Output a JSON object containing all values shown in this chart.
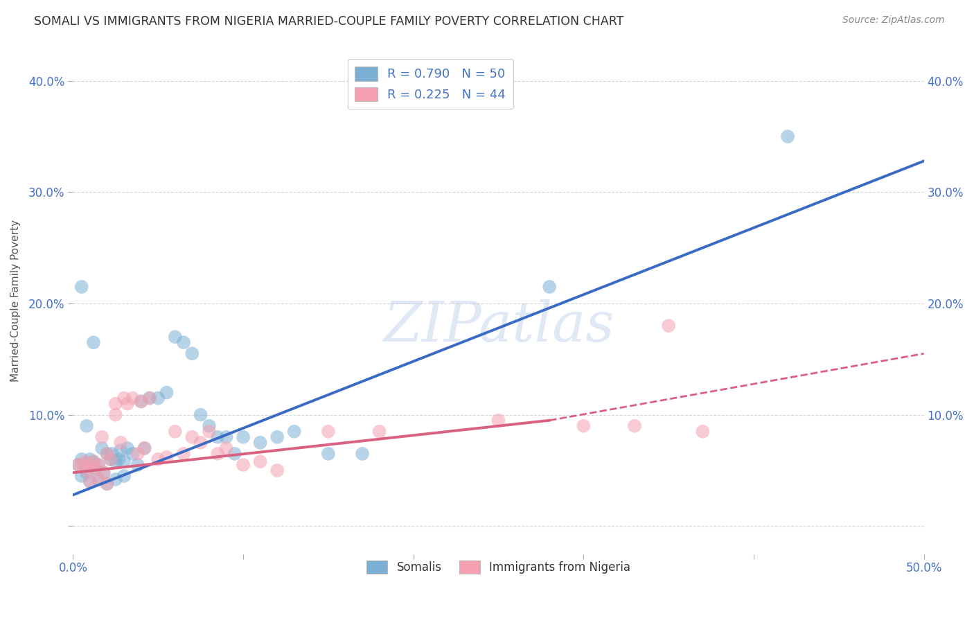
{
  "title": "SOMALI VS IMMIGRANTS FROM NIGERIA MARRIED-COUPLE FAMILY POVERTY CORRELATION CHART",
  "source": "Source: ZipAtlas.com",
  "ylabel": "Married-Couple Family Poverty",
  "xlim": [
    0.0,
    0.5
  ],
  "ylim": [
    -0.025,
    0.43
  ],
  "xticks": [
    0.0,
    0.1,
    0.2,
    0.3,
    0.4,
    0.5
  ],
  "yticks": [
    0.0,
    0.1,
    0.2,
    0.3,
    0.4
  ],
  "ytick_labels_left": [
    "",
    "10.0%",
    "20.0%",
    "30.0%",
    "40.0%"
  ],
  "ytick_labels_right": [
    "",
    "10.0%",
    "20.0%",
    "30.0%",
    "40.0%"
  ],
  "xtick_labels": [
    "0.0%",
    "",
    "",
    "",
    "",
    "50.0%"
  ],
  "somali_color": "#7bafd4",
  "nigeria_color": "#f4a0b0",
  "legend_label1": "Somalis",
  "legend_label2": "Immigrants from Nigeria",
  "somali_scatter_x": [
    0.003,
    0.005,
    0.005,
    0.007,
    0.008,
    0.01,
    0.01,
    0.012,
    0.013,
    0.015,
    0.015,
    0.017,
    0.018,
    0.02,
    0.02,
    0.022,
    0.023,
    0.025,
    0.025,
    0.027,
    0.028,
    0.03,
    0.03,
    0.032,
    0.035,
    0.038,
    0.04,
    0.042,
    0.045,
    0.05,
    0.055,
    0.06,
    0.065,
    0.07,
    0.075,
    0.08,
    0.085,
    0.09,
    0.095,
    0.1,
    0.11,
    0.12,
    0.13,
    0.15,
    0.17,
    0.005,
    0.008,
    0.012,
    0.28,
    0.42
  ],
  "somali_scatter_y": [
    0.055,
    0.06,
    0.045,
    0.055,
    0.048,
    0.06,
    0.04,
    0.058,
    0.052,
    0.055,
    0.042,
    0.07,
    0.048,
    0.065,
    0.038,
    0.06,
    0.065,
    0.058,
    0.042,
    0.06,
    0.068,
    0.058,
    0.045,
    0.07,
    0.065,
    0.055,
    0.112,
    0.07,
    0.115,
    0.115,
    0.12,
    0.17,
    0.165,
    0.155,
    0.1,
    0.09,
    0.08,
    0.08,
    0.065,
    0.08,
    0.075,
    0.08,
    0.085,
    0.065,
    0.065,
    0.215,
    0.09,
    0.165,
    0.215,
    0.35
  ],
  "nigeria_scatter_x": [
    0.003,
    0.005,
    0.007,
    0.008,
    0.01,
    0.01,
    0.012,
    0.013,
    0.015,
    0.015,
    0.017,
    0.018,
    0.02,
    0.02,
    0.022,
    0.025,
    0.025,
    0.028,
    0.03,
    0.032,
    0.035,
    0.038,
    0.04,
    0.042,
    0.045,
    0.05,
    0.055,
    0.06,
    0.065,
    0.07,
    0.075,
    0.08,
    0.085,
    0.09,
    0.1,
    0.11,
    0.12,
    0.15,
    0.18,
    0.25,
    0.3,
    0.33,
    0.35,
    0.37
  ],
  "nigeria_scatter_y": [
    0.055,
    0.055,
    0.058,
    0.05,
    0.055,
    0.04,
    0.058,
    0.052,
    0.055,
    0.042,
    0.08,
    0.048,
    0.065,
    0.038,
    0.06,
    0.11,
    0.1,
    0.075,
    0.115,
    0.11,
    0.115,
    0.065,
    0.112,
    0.07,
    0.115,
    0.06,
    0.062,
    0.085,
    0.065,
    0.08,
    0.075,
    0.085,
    0.065,
    0.07,
    0.055,
    0.058,
    0.05,
    0.085,
    0.085,
    0.095,
    0.09,
    0.09,
    0.18,
    0.085
  ],
  "somali_trend": [
    0.0,
    0.5,
    0.028,
    0.328
  ],
  "nigeria_solid_trend": [
    0.0,
    0.28,
    0.048,
    0.095
  ],
  "nigeria_dashed_trend": [
    0.28,
    0.5,
    0.095,
    0.155
  ],
  "watermark": "ZIPatlas",
  "background_color": "#ffffff",
  "grid_color": "#cccccc",
  "axis_color": "#4472c4",
  "title_color": "#333333",
  "blue_trend_color": "#3a6bc4",
  "pink_trend_color": "#d96080"
}
